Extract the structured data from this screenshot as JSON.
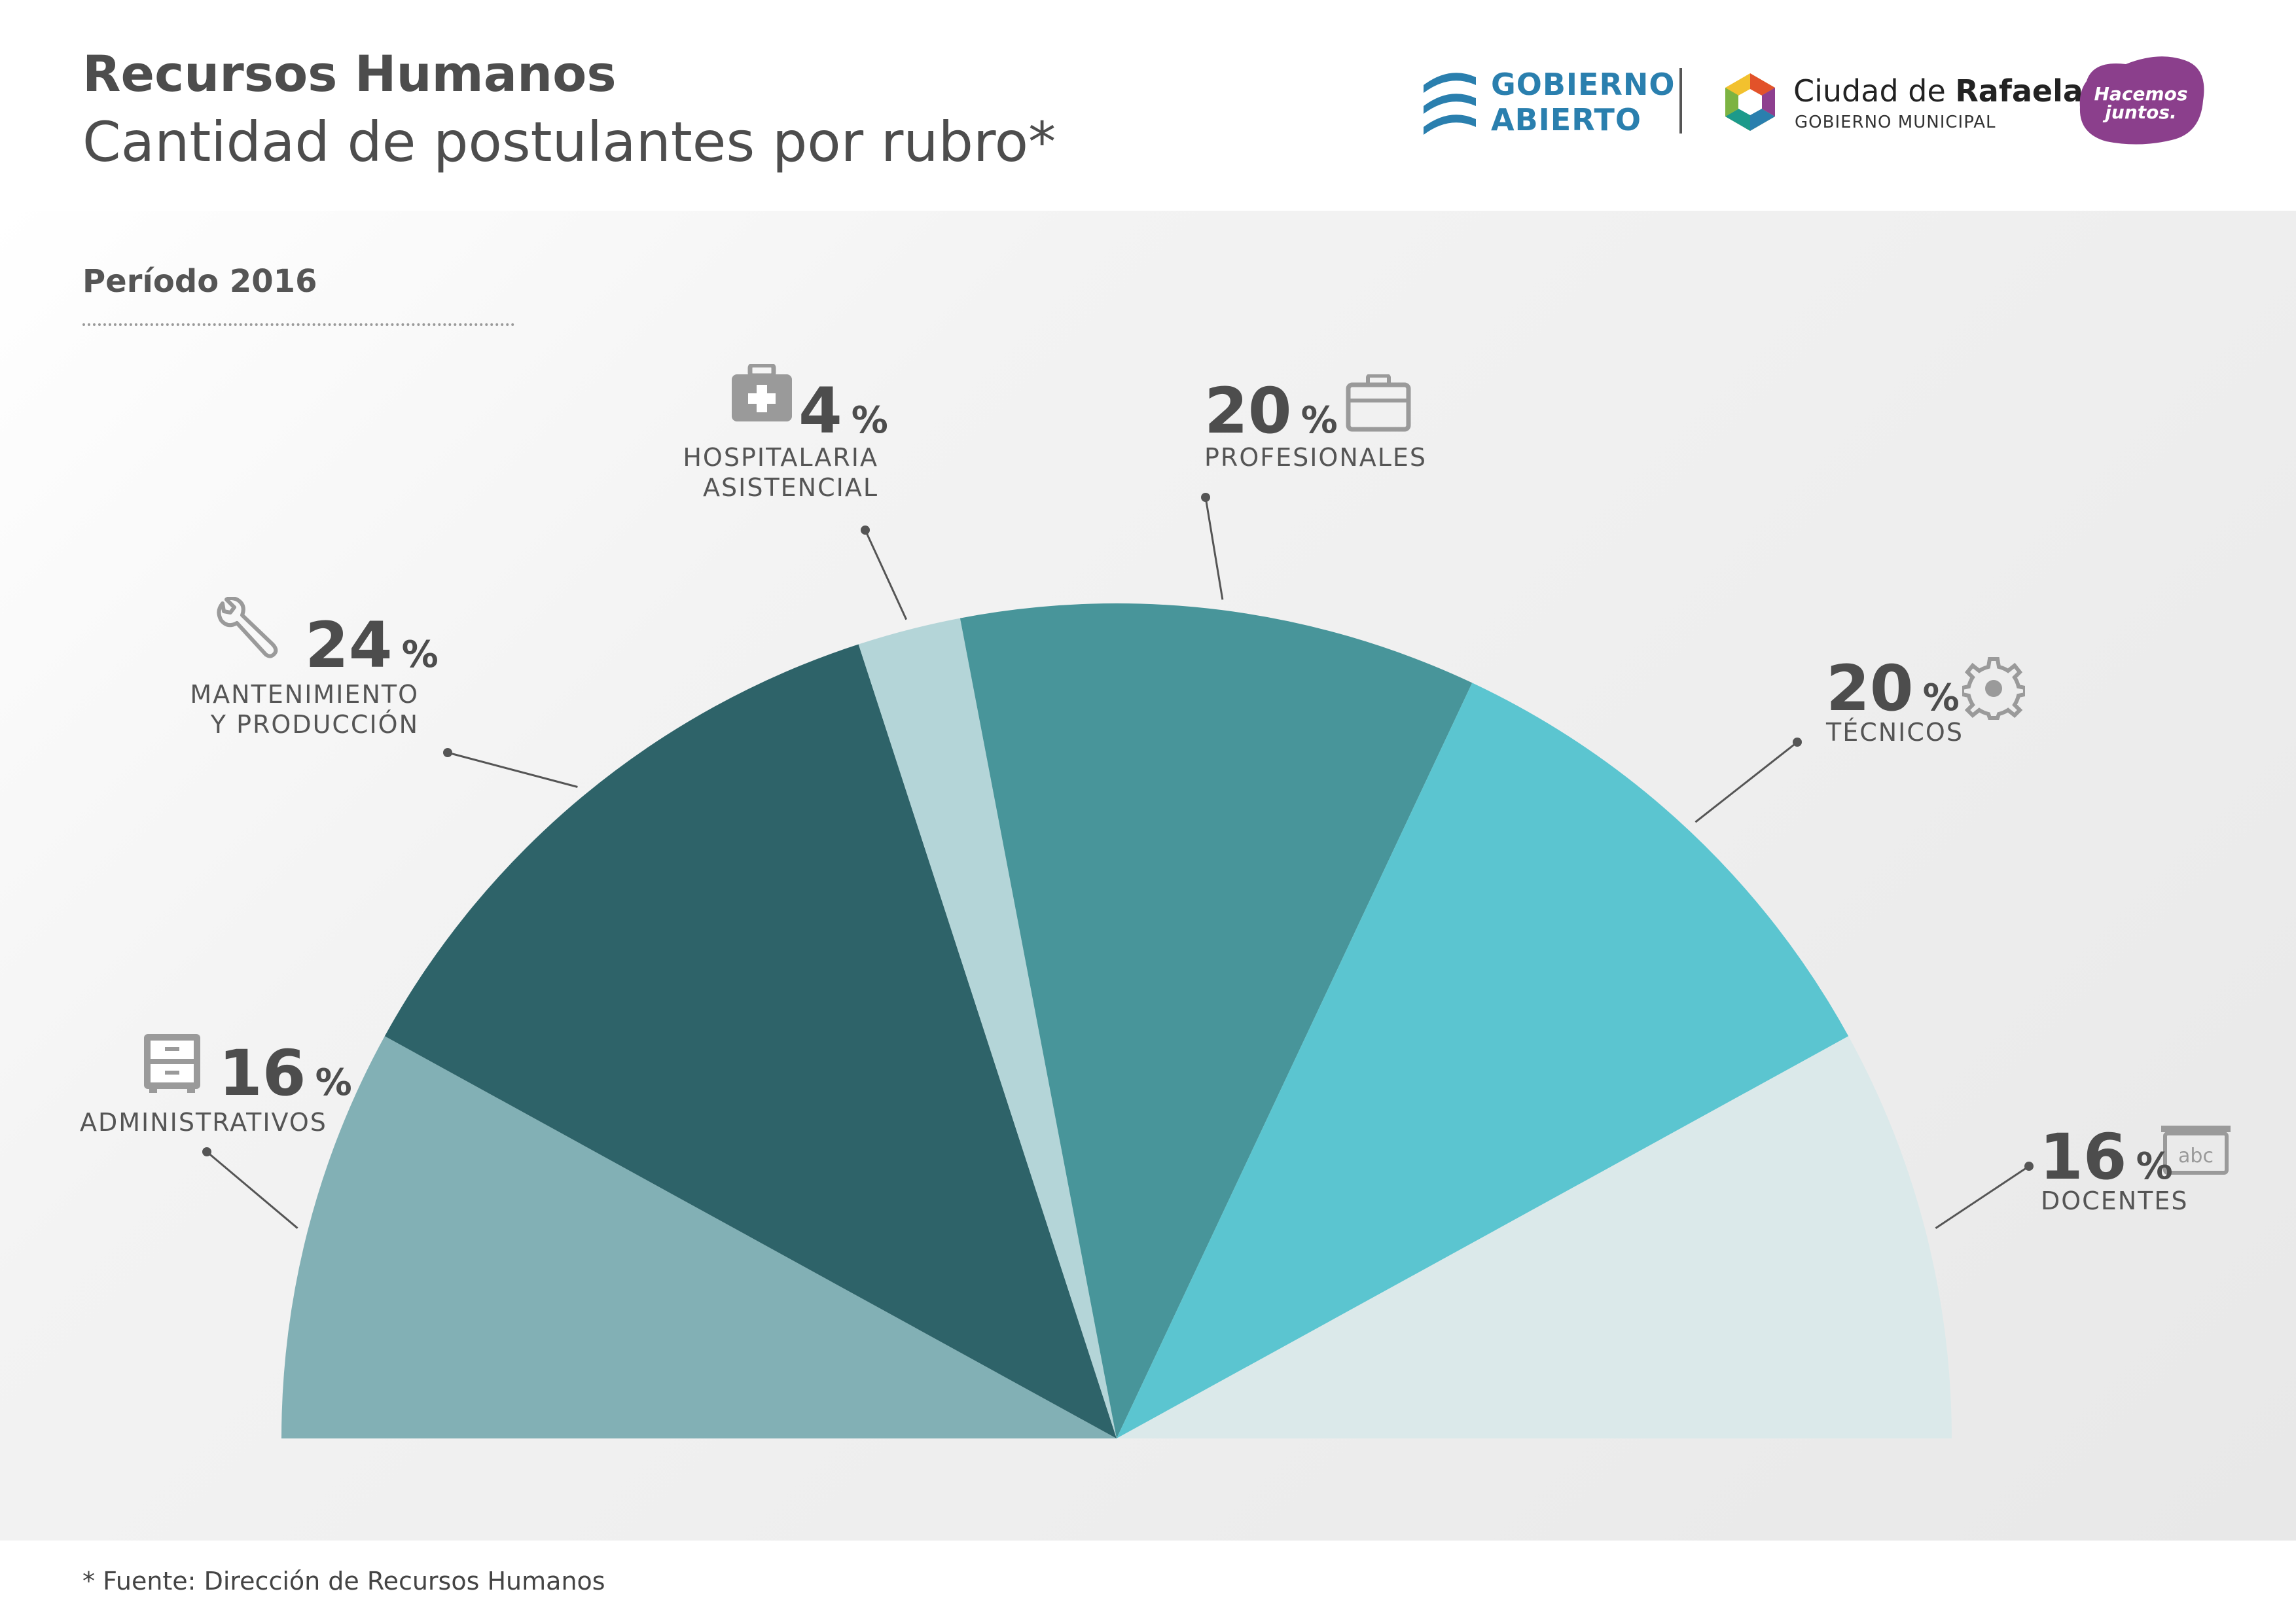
{
  "header": {
    "title": "Recursos Humanos",
    "subtitle": "Cantidad de postulantes por rubro*"
  },
  "logos": {
    "gobierno_abierto_line1": "GOBIERNO",
    "gobierno_abierto_line2": "ABIERTO",
    "rafaela_prefix": "Ciudad de ",
    "rafaela_bold": "Rafaela",
    "rafaela_sub": "GOBIERNO MUNICIPAL",
    "hacemos_juntos": "Hacemos juntos."
  },
  "period": "Período 2016",
  "footnote": "* Fuente: Dirección de Recursos Humanos",
  "colors": {
    "administrativos": "#82b0b5",
    "mantenimiento": "#2e6369",
    "hospitalaria": "#b4d5d8",
    "profesionales": "#48959a",
    "tecnicos": "#5bc5d0",
    "docentes": "#dbe9ea",
    "icons": "#9a9a9a"
  },
  "chart_data": {
    "type": "pie",
    "title": "Cantidad de postulantes por rubro*",
    "subtitle": "Período 2016",
    "unit": "%",
    "layout": "semicircle",
    "slices": [
      {
        "label_lines": [
          "ADMINISTRATIVOS"
        ],
        "value": 16,
        "color_key": "administrativos",
        "icon": "filing-cabinet-icon"
      },
      {
        "label_lines": [
          "MANTENIMIENTO",
          "Y PRODUCCIÓN"
        ],
        "value": 24,
        "color_key": "mantenimiento",
        "icon": "wrench-icon"
      },
      {
        "label_lines": [
          "HOSPITALARIA",
          "ASISTENCIAL"
        ],
        "value": 4,
        "color_key": "hospitalaria",
        "icon": "medical-kit-icon"
      },
      {
        "label_lines": [
          "PROFESIONALES"
        ],
        "value": 20,
        "color_key": "profesionales",
        "icon": "briefcase-icon"
      },
      {
        "label_lines": [
          "TÉCNICOS"
        ],
        "value": 20,
        "color_key": "tecnicos",
        "icon": "gear-icon"
      },
      {
        "label_lines": [
          "DOCENTES"
        ],
        "value": 16,
        "color_key": "docentes",
        "icon": "abc-board-icon"
      }
    ]
  }
}
